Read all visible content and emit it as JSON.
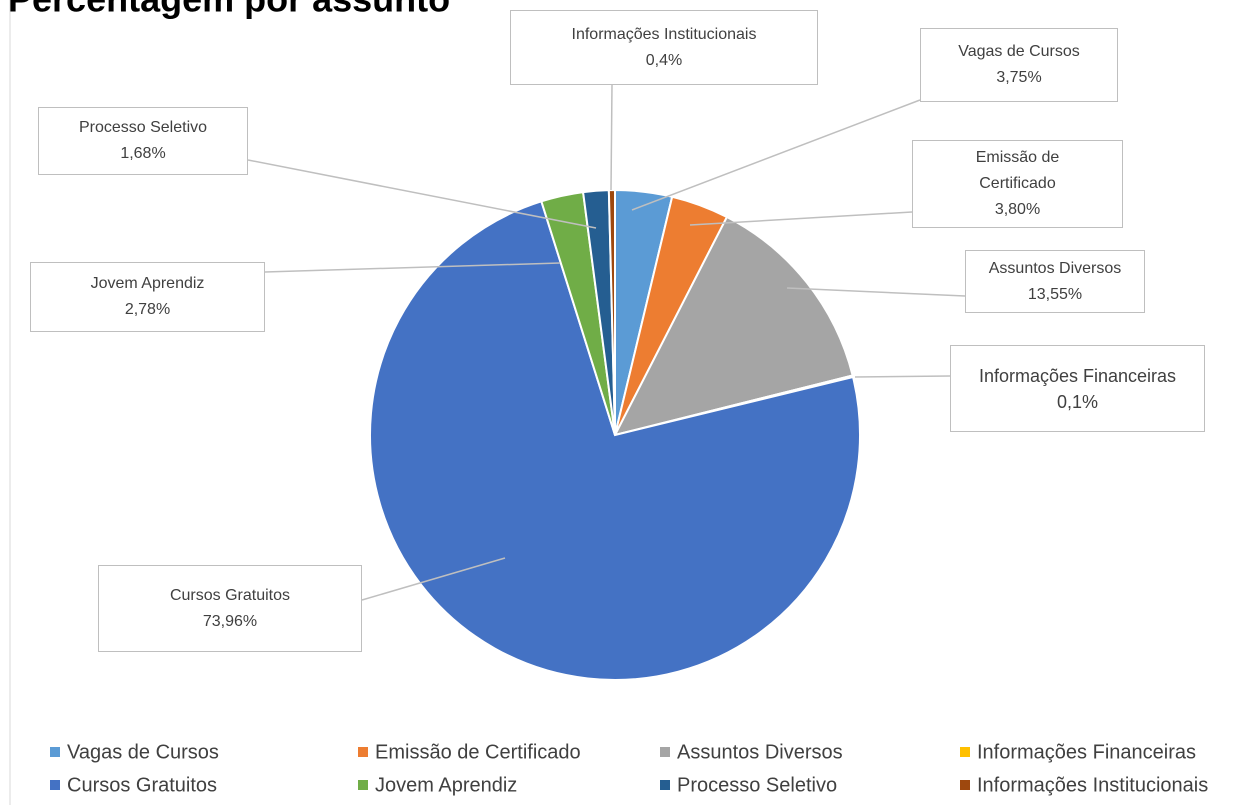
{
  "chart_data": {
    "type": "pie",
    "title": "Percentagem por assunto",
    "categories": [
      "Vagas de Cursos",
      "Emissão de Certificado",
      "Assuntos Diversos",
      "Informações Financeiras",
      "Cursos Gratuitos",
      "Jovem Aprendiz",
      "Processo Seletivo",
      "Informações Institucionais"
    ],
    "values": [
      3.75,
      3.8,
      13.55,
      0.1,
      73.96,
      2.78,
      1.68,
      0.4
    ],
    "value_labels": [
      "3,75%",
      "3,80%",
      "13,55%",
      "0,1%",
      "73,96%",
      "2,78%",
      "1,68%",
      "0,4%"
    ],
    "colors": [
      "#5b9bd5",
      "#ed7d31",
      "#a5a5a5",
      "#ffc000",
      "#4472c4",
      "#70ad47",
      "#255e91",
      "#9e480e"
    ],
    "legend": "bottom"
  }
}
